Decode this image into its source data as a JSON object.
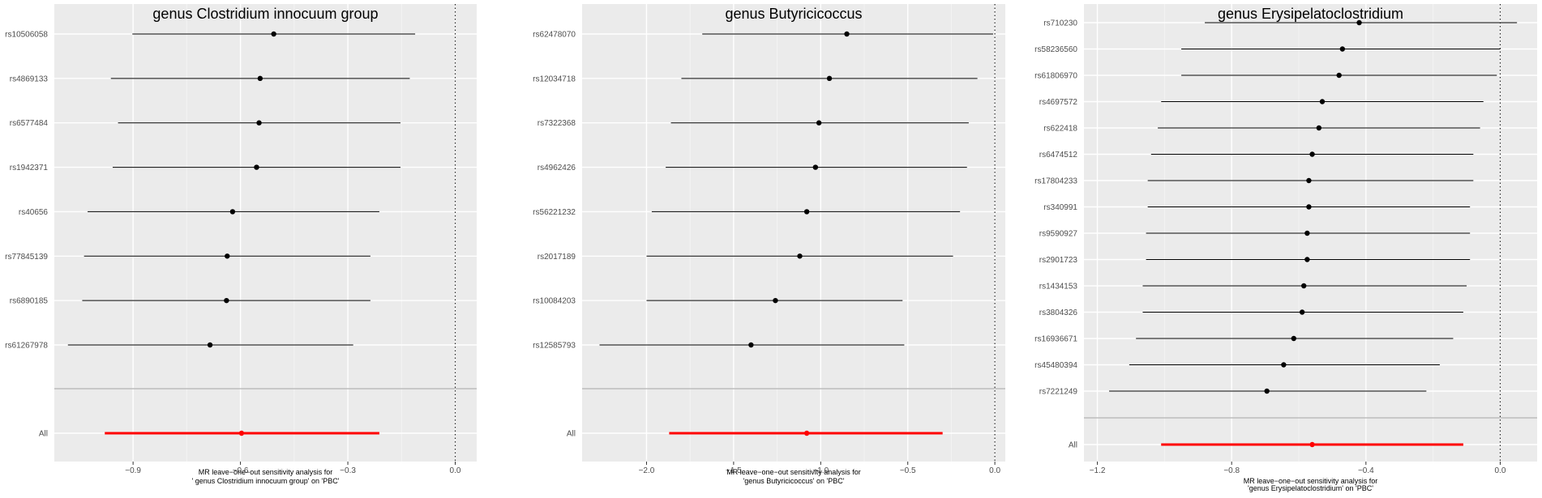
{
  "chart_data": [
    {
      "type": "forest",
      "title": "genus Clostridium innocuum group",
      "xlabel": [
        "MR leave−one−out sensitivity analysis for",
        "' genus Clostridium innocuum group' on 'PBC'"
      ],
      "xlim": [
        -1.12,
        0.06
      ],
      "xticks": [
        -0.9,
        -0.6,
        -0.3,
        0.0
      ],
      "xtick_labels": [
        "−0.9",
        "−0.6",
        "−0.3",
        "0.0"
      ],
      "reference_line": 0.0,
      "rows": [
        {
          "label": "rs10506058",
          "estimate": -0.507,
          "lower": -0.902,
          "upper": -0.112
        },
        {
          "label": "rs4869133",
          "estimate": -0.545,
          "lower": -0.962,
          "upper": -0.127
        },
        {
          "label": "rs6577484",
          "estimate": -0.548,
          "lower": -0.942,
          "upper": -0.153
        },
        {
          "label": "rs1942371",
          "estimate": -0.555,
          "lower": -0.957,
          "upper": -0.153
        },
        {
          "label": "rs40656",
          "estimate": -0.622,
          "lower": -1.027,
          "upper": -0.212
        },
        {
          "label": "rs77845139",
          "estimate": -0.637,
          "lower": -1.037,
          "upper": -0.237
        },
        {
          "label": "rs6890185",
          "estimate": -0.639,
          "lower": -1.042,
          "upper": -0.237
        },
        {
          "label": "rs61267978",
          "estimate": -0.685,
          "lower": -1.082,
          "upper": -0.285
        }
      ],
      "summary": {
        "label": "All",
        "estimate": -0.597,
        "lower": -0.979,
        "upper": -0.212,
        "color": "#ff0000"
      },
      "point_color": "#000000"
    },
    {
      "type": "forest",
      "title": "genus Butyricicoccus",
      "xlabel": [
        "MR leave−one−out sensitivity analysis for",
        "'genus Butyricicoccus' on 'PBC'"
      ],
      "xlim": [
        -2.37,
        0.06
      ],
      "xticks": [
        -2.0,
        -1.5,
        -1.0,
        -0.5,
        0.0
      ],
      "xtick_labels": [
        "−2.0",
        "−1.5",
        "−1.0",
        "−0.5",
        "0.0"
      ],
      "reference_line": 0.0,
      "rows": [
        {
          "label": "rs62478070",
          "estimate": -0.85,
          "lower": -1.68,
          "upper": -0.01
        },
        {
          "label": "rs12034718",
          "estimate": -0.95,
          "lower": -1.8,
          "upper": -0.1
        },
        {
          "label": "rs7322368",
          "estimate": -1.01,
          "lower": -1.86,
          "upper": -0.15
        },
        {
          "label": "rs4962426",
          "estimate": -1.03,
          "lower": -1.89,
          "upper": -0.16
        },
        {
          "label": "rs56221232",
          "estimate": -1.08,
          "lower": -1.97,
          "upper": -0.2
        },
        {
          "label": "rs2017189",
          "estimate": -1.12,
          "lower": -2.0,
          "upper": -0.24
        },
        {
          "label": "rs10084203",
          "estimate": -1.26,
          "lower": -2.0,
          "upper": -0.53
        },
        {
          "label": "rs12585793",
          "estimate": -1.4,
          "lower": -2.27,
          "upper": -0.52
        }
      ],
      "summary": {
        "label": "All",
        "estimate": -1.08,
        "lower": -1.87,
        "upper": -0.3,
        "color": "#ff0000"
      },
      "point_color": "#000000"
    },
    {
      "type": "forest",
      "title": "genus Erysipelatoclostridium",
      "xlabel": [
        "MR leave−one−out sensitivity analysis for",
        "'genus Erysipelatoclostridium' on 'PBC'"
      ],
      "xlim": [
        -1.24,
        0.11
      ],
      "xticks": [
        -1.2,
        -0.8,
        -0.4,
        0.0
      ],
      "xtick_labels": [
        "−1.2",
        "−0.8",
        "−0.4",
        "0.0"
      ],
      "reference_line": 0.0,
      "rows": [
        {
          "label": "rs710230",
          "estimate": -0.42,
          "lower": -0.88,
          "upper": 0.05
        },
        {
          "label": "rs58236560",
          "estimate": -0.47,
          "lower": -0.95,
          "upper": 0.0
        },
        {
          "label": "rs61806970",
          "estimate": -0.48,
          "lower": -0.95,
          "upper": -0.01
        },
        {
          "label": "rs4697572",
          "estimate": -0.53,
          "lower": -1.01,
          "upper": -0.05
        },
        {
          "label": "rs622418",
          "estimate": -0.54,
          "lower": -1.02,
          "upper": -0.06
        },
        {
          "label": "rs6474512",
          "estimate": -0.56,
          "lower": -1.04,
          "upper": -0.08
        },
        {
          "label": "rs17804233",
          "estimate": -0.57,
          "lower": -1.05,
          "upper": -0.08
        },
        {
          "label": "rs340991",
          "estimate": -0.57,
          "lower": -1.05,
          "upper": -0.09
        },
        {
          "label": "rs9590927",
          "estimate": -0.575,
          "lower": -1.055,
          "upper": -0.09
        },
        {
          "label": "rs2901723",
          "estimate": -0.575,
          "lower": -1.055,
          "upper": -0.09
        },
        {
          "label": "rs1434153",
          "estimate": -0.585,
          "lower": -1.065,
          "upper": -0.1
        },
        {
          "label": "rs3804326",
          "estimate": -0.59,
          "lower": -1.065,
          "upper": -0.11
        },
        {
          "label": "rs16936671",
          "estimate": -0.615,
          "lower": -1.085,
          "upper": -0.14
        },
        {
          "label": "rs45480394",
          "estimate": -0.645,
          "lower": -1.105,
          "upper": -0.18
        },
        {
          "label": "rs7221249",
          "estimate": -0.695,
          "lower": -1.165,
          "upper": -0.22
        }
      ],
      "summary": {
        "label": "All",
        "estimate": -0.56,
        "lower": -1.01,
        "upper": -0.11,
        "color": "#ff0000"
      },
      "point_color": "#000000"
    }
  ]
}
